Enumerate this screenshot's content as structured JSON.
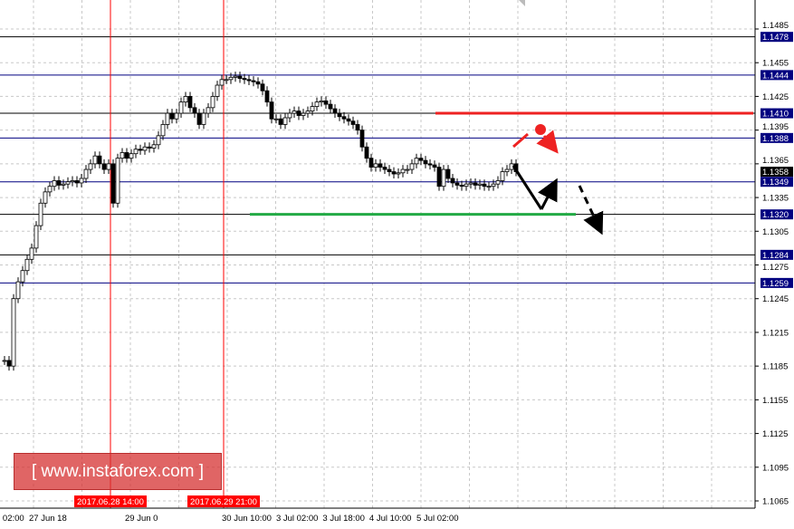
{
  "chart_data": {
    "type": "candlestick",
    "instrument_levels": [
      {
        "price": 1.1478,
        "label": "1.1478",
        "color": "#000000"
      },
      {
        "price": 1.1444,
        "label": "1.1444",
        "color": "#000080"
      },
      {
        "price": 1.141,
        "label": "1.1410",
        "color": "#000000"
      },
      {
        "price": 1.1388,
        "label": "1.1388",
        "color": "#000080"
      },
      {
        "price": 1.1349,
        "label": "1.1349",
        "color": "#000080"
      },
      {
        "price": 1.132,
        "label": "1.1320",
        "color": "#000000"
      },
      {
        "price": 1.1284,
        "label": "1.1284",
        "color": "#000000"
      },
      {
        "price": 1.1259,
        "label": "1.1259",
        "color": "#000080"
      }
    ],
    "current_price": {
      "price": 1.1358,
      "label": "1.1358"
    },
    "y_ticks": [
      "1.1485",
      "1.1455",
      "1.1425",
      "1.1395",
      "1.1365",
      "1.1335",
      "1.1305",
      "1.1275",
      "1.1245",
      "1.1215",
      "1.1185",
      "1.1155",
      "1.1125",
      "1.1095",
      "1.1065"
    ],
    "ylim": [
      1.1065,
      1.1485
    ],
    "grid": true,
    "x_labels": [
      {
        "text": "n 02:00",
        "at": -1
      },
      {
        "text": "27 Jun 18",
        "at": 6.4
      },
      {
        "text": "29 Jun 0",
        "at": 27.6
      },
      {
        "text": "30 Jun 10:00",
        "at": 49
      },
      {
        "text": "3 Jul 02:00",
        "at": 60
      },
      {
        "text": "3 Jul 18:00",
        "at": 70.6
      },
      {
        "text": "4 Jul 10:00",
        "at": 81.4
      },
      {
        "text": "5 Jul 02:00",
        "at": 92
      }
    ],
    "vertical_markers": [
      {
        "label": "2017.06.28 14:00",
        "at": 23.4,
        "color": "#ff0000"
      },
      {
        "label": "2017.06.29 21:00",
        "at": 48.4,
        "color": "#ff0000"
      }
    ],
    "closes": [
      1.119,
      1.1185,
      1.1245,
      1.126,
      1.127,
      1.128,
      1.129,
      1.131,
      1.133,
      1.134,
      1.1345,
      1.135,
      1.1346,
      1.1347,
      1.1349,
      1.135,
      1.1348,
      1.1352,
      1.136,
      1.1365,
      1.1372,
      1.1365,
      1.136,
      1.1365,
      1.133,
      1.137,
      1.1375,
      1.137,
      1.1374,
      1.1378,
      1.1377,
      1.138,
      1.1379,
      1.1382,
      1.139,
      1.14,
      1.141,
      1.1405,
      1.141,
      1.142,
      1.1425,
      1.1415,
      1.141,
      1.14,
      1.141,
      1.1415,
      1.1425,
      1.1435,
      1.144,
      1.144,
      1.1442,
      1.1443,
      1.1441,
      1.144,
      1.1439,
      1.1438,
      1.1436,
      1.143,
      1.142,
      1.1405,
      1.1405,
      1.14,
      1.1406,
      1.141,
      1.1412,
      1.1408,
      1.141,
      1.1412,
      1.1416,
      1.142,
      1.1421,
      1.1418,
      1.1414,
      1.141,
      1.1407,
      1.1405,
      1.1403,
      1.14,
      1.1395,
      1.138,
      1.137,
      1.1362,
      1.1365,
      1.1362,
      1.136,
      1.1358,
      1.1356,
      1.1357,
      1.136,
      1.136,
      1.1365,
      1.137,
      1.1368,
      1.1365,
      1.1364,
      1.1362,
      1.1345,
      1.136,
      1.1352,
      1.1348,
      1.1346,
      1.1345,
      1.1347,
      1.1348,
      1.1346,
      1.1347,
      1.1345,
      1.1345,
      1.1347,
      1.135,
      1.1358,
      1.136,
      1.1365,
      1.1358
    ],
    "annotations": {
      "resistance_line": {
        "price": 1.141,
        "color": "#ee2222"
      },
      "support_line": {
        "price": 1.132,
        "color": "#22aa44"
      }
    }
  },
  "watermark": "[ www.instaforex.com ]"
}
